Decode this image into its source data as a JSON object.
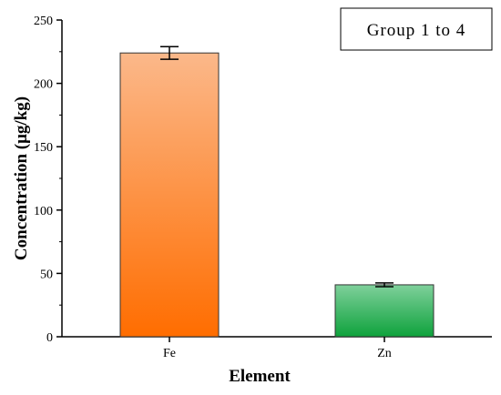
{
  "chart_data": {
    "type": "bar",
    "categories": [
      "Fe",
      "Zn"
    ],
    "values": [
      224,
      41
    ],
    "errors": [
      5,
      1.5
    ],
    "xlabel": "Element",
    "ylabel": "Concentration (μg/kg)",
    "ylim": [
      0,
      250
    ],
    "yticks": [
      "0",
      "50",
      "100",
      "150",
      "200",
      "250"
    ],
    "legend": "Group 1 to 4",
    "legend_position": "top-right",
    "grid": false,
    "colors": {
      "Fe": {
        "top": "#fbb88a",
        "bottom": "#ff6d00"
      },
      "Zn": {
        "top": "#7fd09b",
        "bottom": "#0ea23c"
      }
    }
  }
}
